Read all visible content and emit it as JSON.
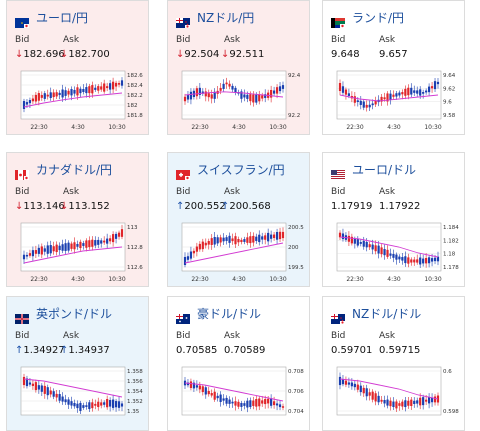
{
  "cards": [
    {
      "name": "ユーロ/円",
      "bid_label": "Bid",
      "ask_label": "Ask",
      "bid": "182.696",
      "ask": "182.700",
      "arrow": "↓",
      "dir": "down",
      "flag": "eu",
      "bg": "down",
      "chart": {
        "yticks": [
          "182.6",
          "182.4",
          "182.2",
          "182",
          "181.8"
        ],
        "xticks": [
          "22:30",
          "4:30",
          "10:30"
        ]
      }
    },
    {
      "name": "NZドル/円",
      "bid_label": "Bid",
      "ask_label": "Ask",
      "bid": "92.504",
      "ask": "92.511",
      "arrow": "↓",
      "dir": "down",
      "flag": "nz",
      "bg": "down",
      "chart": {
        "yticks": [
          "92.4",
          "92.2"
        ],
        "xticks": [
          "22:30",
          "4:30",
          "10:30"
        ]
      }
    },
    {
      "name": "ランド/円",
      "bid_label": "Bid",
      "ask_label": "Ask",
      "bid": "9.648",
      "ask": "9.657",
      "arrow": "",
      "dir": "flat",
      "flag": "za",
      "bg": "flat",
      "chart": {
        "yticks": [
          "9.64",
          "9.62",
          "9.6",
          "9.58"
        ],
        "xticks": [
          "22:30",
          "4:30",
          "10:30"
        ]
      }
    },
    {
      "name": "カナダドル/円",
      "bid_label": "Bid",
      "ask_label": "Ask",
      "bid": "113.146",
      "ask": "113.152",
      "arrow": "↓",
      "dir": "down",
      "flag": "ca",
      "bg": "down",
      "chart": {
        "yticks": [
          "113",
          "112.8",
          "112.6"
        ],
        "xticks": [
          "22:30",
          "4:30",
          "10:30"
        ]
      }
    },
    {
      "name": "スイスフラン/円",
      "bid_label": "Bid",
      "ask_label": "Ask",
      "bid": "200.552",
      "ask": "200.568",
      "arrow": "↑",
      "dir": "up",
      "flag": "ch",
      "bg": "up",
      "chart": {
        "yticks": [
          "200.5",
          "200",
          "199.5"
        ],
        "xticks": [
          "22:30",
          "4:30",
          "10:30"
        ]
      }
    },
    {
      "name": "ユーロ/ドル",
      "bid_label": "Bid",
      "ask_label": "Ask",
      "bid": "1.17919",
      "ask": "1.17922",
      "arrow": "",
      "dir": "flat",
      "flag": "us",
      "bg": "flat",
      "chart": {
        "yticks": [
          "1.184",
          "1.182",
          "1.18",
          "1.178"
        ],
        "xticks": [
          "22:30",
          "4:30",
          "10:30"
        ]
      }
    },
    {
      "name": "英ポンド/ドル",
      "bid_label": "Bid",
      "ask_label": "Ask",
      "bid": "1.34927",
      "ask": "1.34937",
      "arrow": "↑",
      "dir": "up",
      "flag": "gb",
      "bg": "up",
      "chart": {
        "yticks": [
          "1.358",
          "1.356",
          "1.354",
          "1.352",
          "1.35"
        ],
        "xticks": []
      }
    },
    {
      "name": "豪ドル/ドル",
      "bid_label": "Bid",
      "ask_label": "Ask",
      "bid": "0.70585",
      "ask": "0.70589",
      "arrow": "",
      "dir": "flat",
      "flag": "au",
      "bg": "flat",
      "chart": {
        "yticks": [
          "0.708",
          "0.706",
          "0.704"
        ],
        "xticks": []
      }
    },
    {
      "name": "NZドル/ドル",
      "bid_label": "Bid",
      "ask_label": "Ask",
      "bid": "0.59701",
      "ask": "0.59715",
      "arrow": "",
      "dir": "flat",
      "flag": "nz",
      "bg": "flat",
      "chart": {
        "yticks": [
          "0.6",
          "0.598"
        ],
        "xticks": []
      }
    }
  ],
  "colors": {
    "up_candle": "#1a3fb0",
    "down_candle": "#e0252a",
    "ma_line": "#d23bd2",
    "grid": "#dddddd"
  }
}
